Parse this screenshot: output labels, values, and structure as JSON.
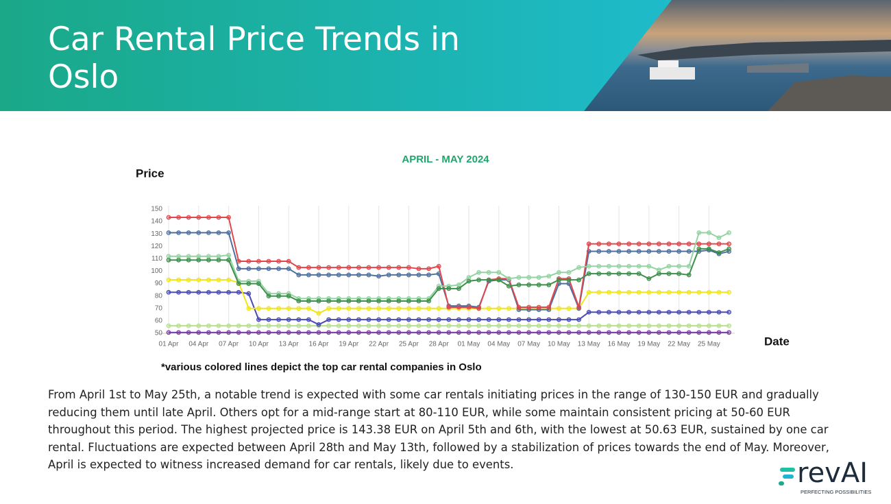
{
  "header": {
    "title": "Car Rental Price Trends in Oslo"
  },
  "chart_data": {
    "type": "line",
    "title": "APRIL - MAY 2024",
    "y_label": "Price",
    "x_label": "Date",
    "categories": [
      "01 Apr",
      null,
      null,
      "04 Apr",
      null,
      null,
      "07 Apr",
      null,
      null,
      "10 Apr",
      null,
      null,
      "13 Apr",
      null,
      null,
      "16 Apr",
      null,
      null,
      "19 Apr",
      null,
      null,
      "22 Apr",
      null,
      null,
      "25 Apr",
      null,
      null,
      "28 Apr",
      null,
      null,
      "01 May",
      null,
      null,
      "04 May",
      null,
      null,
      "07 May",
      null,
      null,
      "10 May",
      null,
      null,
      "13 May",
      null,
      null,
      "16 May",
      null,
      null,
      "19 May",
      null,
      null,
      "22 May",
      null,
      null,
      "25 May",
      null,
      null
    ],
    "ylim": [
      50,
      150
    ],
    "yticks": [
      50,
      60,
      70,
      80,
      90,
      100,
      110,
      120,
      130,
      140,
      150
    ],
    "grid": true,
    "series": [
      {
        "color": "#7a3fa3",
        "values": [
          50.63,
          50.63,
          50.63,
          50.63,
          50.63,
          50.63,
          50.63,
          50.63,
          50.63,
          50.63,
          50.63,
          50.63,
          50.63,
          50.63,
          50.63,
          50.63,
          50.63,
          50.63,
          50.63,
          50.63,
          50.63,
          50.63,
          50.63,
          50.63,
          50.63,
          50.63,
          50.63,
          50.63,
          50.63,
          50.63,
          50.63,
          50.63,
          50.63,
          50.63,
          50.63,
          50.63,
          50.63,
          50.63,
          50.63,
          50.63,
          50.63,
          50.63,
          50.63,
          50.63,
          50.63,
          50.63,
          50.63,
          50.63,
          50.63,
          50.63,
          50.63,
          50.63,
          50.63,
          50.63,
          50.63,
          50.63,
          50.63
        ]
      },
      {
        "color": "#b7df8e",
        "values": [
          56,
          56,
          56,
          56,
          56,
          56,
          56,
          56,
          56,
          56,
          56,
          56,
          56,
          56,
          56,
          56,
          56,
          56,
          56,
          56,
          56,
          56,
          56,
          56,
          56,
          56,
          56,
          56,
          56,
          56,
          56,
          56,
          56,
          56,
          56,
          56,
          56,
          56,
          56,
          56,
          56,
          56,
          56,
          56,
          56,
          56,
          56,
          56,
          56,
          56,
          56,
          56,
          56,
          56,
          56,
          56,
          56
        ]
      },
      {
        "color": "#4a4ab5",
        "values": [
          83,
          83,
          83,
          83,
          83,
          83,
          83,
          83,
          82,
          61,
          61,
          61,
          61,
          61,
          61,
          57,
          61,
          61,
          61,
          61,
          61,
          61,
          61,
          61,
          61,
          61,
          61,
          61,
          61,
          61,
          61,
          61,
          61,
          61,
          61,
          61,
          61,
          61,
          61,
          61,
          61,
          61,
          67,
          67,
          67,
          67,
          67,
          67,
          67,
          67,
          67,
          67,
          67,
          67,
          67,
          67,
          67
        ]
      },
      {
        "color": "#f0e51c",
        "values": [
          93,
          93,
          93,
          93,
          93,
          93,
          93,
          91,
          70,
          70,
          70,
          70,
          70,
          70,
          70,
          66,
          70,
          70,
          70,
          70,
          70,
          70,
          70,
          70,
          70,
          70,
          70,
          70,
          70,
          70,
          70,
          70,
          70,
          70,
          70,
          70,
          70,
          70,
          70,
          70,
          70,
          70,
          83,
          83,
          83,
          83,
          83,
          83,
          83,
          83,
          83,
          83,
          83,
          83,
          83,
          83,
          83
        ]
      },
      {
        "color": "#4e6f9e",
        "values": [
          131,
          131,
          131,
          131,
          131,
          131,
          131,
          102,
          102,
          102,
          102,
          102,
          102,
          97,
          97,
          97,
          97,
          97,
          97,
          97,
          97,
          96,
          97,
          97,
          97,
          97,
          97,
          98,
          72,
          72,
          72,
          71,
          92,
          93,
          93,
          69,
          69,
          69,
          69,
          90,
          90,
          70,
          116,
          116,
          116,
          116,
          116,
          116,
          116,
          116,
          116,
          116,
          116,
          116,
          117,
          114,
          116
        ]
      },
      {
        "color": "#e0474c",
        "values": [
          143.38,
          143.38,
          143.38,
          143.38,
          143.38,
          143.38,
          143.38,
          108,
          108,
          108,
          108,
          108,
          108,
          103,
          103,
          103,
          103,
          103,
          103,
          103,
          103,
          103,
          103,
          103,
          103,
          102,
          102,
          104,
          71,
          71,
          71,
          70,
          93,
          94,
          94,
          71,
          71,
          71,
          71,
          94,
          94,
          71,
          122,
          122,
          122,
          122,
          122,
          122,
          122,
          122,
          122,
          122,
          122,
          122,
          122,
          122,
          122
        ]
      },
      {
        "color": "#93d3a2",
        "values": [
          112,
          112,
          112,
          112,
          112,
          112,
          113,
          92,
          92,
          92,
          82,
          82,
          82,
          78,
          78,
          78,
          78,
          78,
          78,
          78,
          78,
          78,
          78,
          78,
          78,
          78,
          78,
          88,
          88,
          89,
          95,
          99,
          99,
          99,
          94,
          95,
          95,
          95,
          96,
          99,
          99,
          103,
          104,
          104,
          104,
          104,
          104,
          104,
          104,
          101,
          104,
          104,
          104,
          131,
          131,
          127,
          131
        ]
      },
      {
        "color": "#3d8f4c",
        "values": [
          109,
          109,
          109,
          109,
          109,
          109,
          109,
          90,
          90,
          90,
          80,
          80,
          80,
          76,
          76,
          76,
          76,
          76,
          76,
          76,
          76,
          76,
          76,
          76,
          76,
          76,
          76,
          86,
          86,
          86,
          92,
          93,
          93,
          93,
          88,
          89,
          89,
          89,
          89,
          93,
          93,
          93,
          98,
          98,
          98,
          98,
          98,
          98,
          94,
          98,
          98,
          98,
          97,
          118,
          118,
          115,
          118
        ]
      }
    ]
  },
  "note": "*various colored lines depict the top car rental companies in Oslo",
  "description": "From April 1st to May 25th, a notable trend is expected with some car rentals initiating prices in the range of 130-150 EUR and gradually reducing them until late April. Others opt for a mid-range start at 80-110 EUR, while some maintain consistent pricing at 50-60 EUR throughout this period. The highest projected price is 143.38 EUR on April 5th and 6th, with the lowest at 50.63 EUR, sustained by one car rental. Fluctuations are expected between April 28th and May 13th, followed by a stabilization of prices towards the end of May. Moreover, April is expected to witness increased demand for car rentals, likely due to events.",
  "logo": {
    "name": "revAI",
    "tagline": "PERFECTING POSSIBILITIES"
  }
}
